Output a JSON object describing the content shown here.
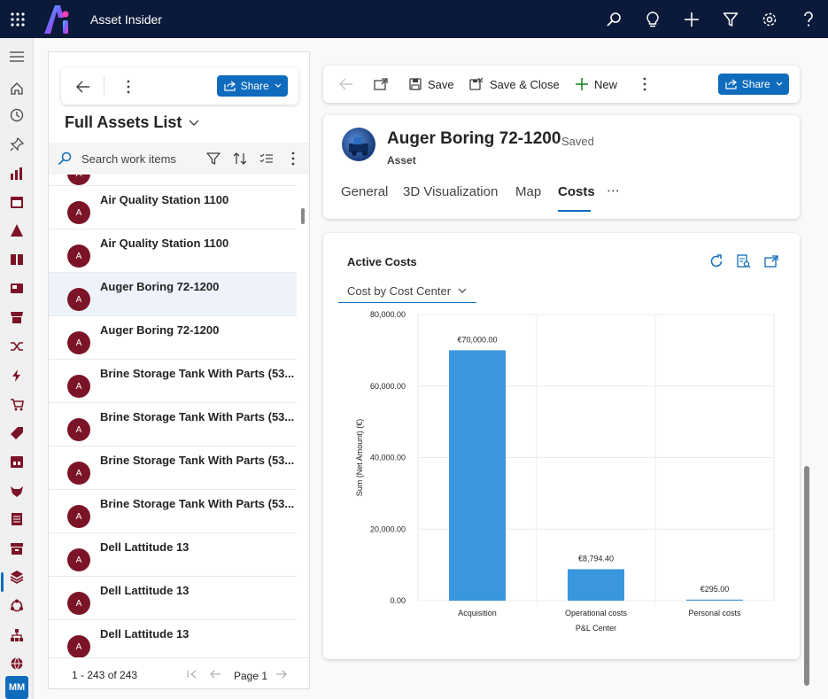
{
  "app": {
    "title": "Asset Insider"
  },
  "user": {
    "initials": "MM"
  },
  "list": {
    "title": "Full Assets List",
    "share_label": "Share",
    "search_placeholder": "Search work items",
    "avatar_initial": "A",
    "rows": [
      {
        "name": "Air Quality Station 1100"
      },
      {
        "name": "Air Quality Station 1100"
      },
      {
        "name": "Auger Boring 72-1200",
        "selected": true
      },
      {
        "name": "Auger Boring 72-1200"
      },
      {
        "name": "Brine Storage Tank With Parts (53..."
      },
      {
        "name": "Brine Storage Tank With Parts (53..."
      },
      {
        "name": "Brine Storage Tank With Parts (53..."
      },
      {
        "name": "Brine Storage Tank With Parts (53..."
      },
      {
        "name": "Dell Lattitude 13"
      },
      {
        "name": "Dell Lattitude 13"
      },
      {
        "name": "Dell Lattitude 13"
      }
    ],
    "footer": {
      "count": "1 - 243 of 243",
      "page": "Page 1"
    }
  },
  "command_bar": {
    "save": "Save",
    "save_close": "Save & Close",
    "new": "New",
    "share": "Share"
  },
  "record": {
    "title": "Auger Boring 72-1200",
    "status": "- Saved",
    "type": "Asset",
    "tabs": [
      "General",
      "3D Visualization",
      "Map",
      "Costs"
    ],
    "active_tab": "Costs",
    "more_tabs": "⋯"
  },
  "costs": {
    "title": "Active Costs",
    "view_select": "Cost by Cost Center"
  },
  "colors": {
    "accent": "#0f6cbd",
    "bar": "#3a96dd",
    "avatar": "#7b1426",
    "topbar": "#0b1a3a"
  },
  "chart_data": {
    "type": "bar",
    "xlabel": "P&L Center",
    "ylabel": "Sum (Net Amount) (€)",
    "categories": [
      "Acquisition",
      "Operational costs",
      "Personal costs"
    ],
    "values": [
      70000,
      8794.4,
      295
    ],
    "data_labels": [
      "€70,000.00",
      "€8,794.40",
      "€295.00"
    ],
    "yticks": [
      "0.00",
      "20,000.00",
      "40,000.00",
      "60,000.00",
      "80,000.00"
    ],
    "ylim": [
      0,
      80000
    ],
    "grid": true
  }
}
